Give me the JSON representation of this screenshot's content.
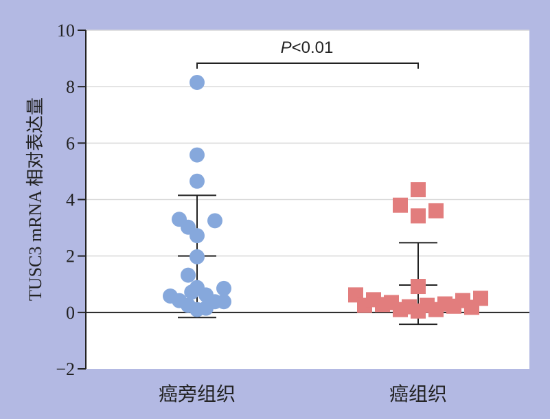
{
  "chart_data": {
    "type": "scatter",
    "ylabel": "TUSC3 mRNA 相对表达量",
    "ylim": [
      -2,
      10
    ],
    "yticks": [
      "−2",
      "0",
      "2",
      "4",
      "6",
      "8",
      "10"
    ],
    "categories": [
      "癌旁组织",
      "癌组织"
    ],
    "grid": "horizontal",
    "annotation": {
      "p_italic": "P",
      "rest": "<0.01"
    },
    "series": [
      {
        "category": "癌旁组织",
        "marker": "circle",
        "color": "#86a8dc",
        "mean": 2.0,
        "sd_upper": 4.15,
        "sd_lower": -0.18,
        "points": [
          {
            "offset": 0,
            "y": 8.15
          },
          {
            "offset": 0,
            "y": 5.58
          },
          {
            "offset": 0,
            "y": 4.65
          },
          {
            "offset": -1,
            "y": 3.3
          },
          {
            "offset": -0.5,
            "y": 3.02
          },
          {
            "offset": 1,
            "y": 3.25
          },
          {
            "offset": 0,
            "y": 2.72
          },
          {
            "offset": 0,
            "y": 1.97
          },
          {
            "offset": -0.5,
            "y": 1.32
          },
          {
            "offset": 0,
            "y": 0.88
          },
          {
            "offset": -0.3,
            "y": 0.72
          },
          {
            "offset": 0.5,
            "y": 0.62
          },
          {
            "offset": 1.5,
            "y": 0.85
          },
          {
            "offset": -1.5,
            "y": 0.58
          },
          {
            "offset": -1,
            "y": 0.42
          },
          {
            "offset": -0.5,
            "y": 0.25
          },
          {
            "offset": 0,
            "y": 0.1
          },
          {
            "offset": 0.5,
            "y": 0.15
          },
          {
            "offset": 1,
            "y": 0.38
          },
          {
            "offset": 1.5,
            "y": 0.38
          }
        ]
      },
      {
        "category": "癌组织",
        "marker": "square",
        "color": "#e27d7d",
        "mean": 0.97,
        "sd_upper": 2.47,
        "sd_lower": -0.42,
        "points": [
          {
            "offset": 0,
            "y": 4.35
          },
          {
            "offset": -1,
            "y": 3.8
          },
          {
            "offset": 0,
            "y": 3.42
          },
          {
            "offset": 1,
            "y": 3.6
          },
          {
            "offset": 0,
            "y": 0.92
          },
          {
            "offset": -3.5,
            "y": 0.62
          },
          {
            "offset": -3,
            "y": 0.25
          },
          {
            "offset": -2.5,
            "y": 0.45
          },
          {
            "offset": -2,
            "y": 0.28
          },
          {
            "offset": -1.5,
            "y": 0.35
          },
          {
            "offset": -1,
            "y": 0.1
          },
          {
            "offset": -0.5,
            "y": 0.2
          },
          {
            "offset": 0,
            "y": 0.05
          },
          {
            "offset": 0.5,
            "y": 0.25
          },
          {
            "offset": 1,
            "y": 0.1
          },
          {
            "offset": 1.5,
            "y": 0.3
          },
          {
            "offset": 2,
            "y": 0.22
          },
          {
            "offset": 2.5,
            "y": 0.42
          },
          {
            "offset": 3,
            "y": 0.18
          },
          {
            "offset": 3.5,
            "y": 0.5
          }
        ]
      }
    ]
  }
}
